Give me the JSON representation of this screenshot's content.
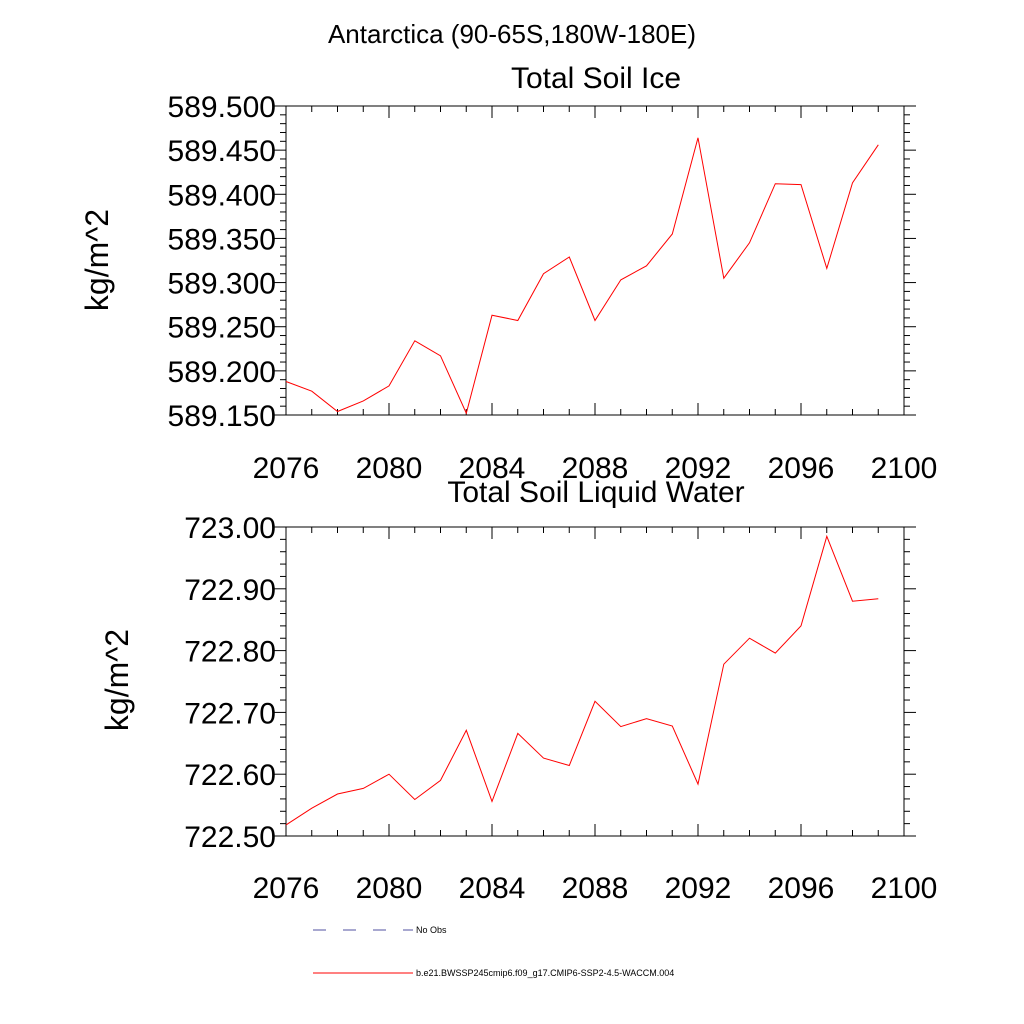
{
  "figure": {
    "title": "Antarctica (90-65S,180W-180E)",
    "series_color": "#ff0000",
    "obs_color": "#5050a0"
  },
  "legend": {
    "entries": [
      {
        "label": "No Obs",
        "style": "dashed"
      },
      {
        "label": "b.e21.BWSSP245cmip6.f09_g17.CMIP6-SSP2-4.5-WACCM.004",
        "style": "solid"
      }
    ]
  },
  "chart_data": [
    {
      "type": "line",
      "title": "Total Soil Ice",
      "xlabel": "",
      "ylabel": "kg/m^2",
      "xlim": [
        2076,
        2100
      ],
      "ylim": [
        589.15,
        589.5
      ],
      "xticks": [
        "2076",
        "2080",
        "2084",
        "2088",
        "2092",
        "2096",
        "2100"
      ],
      "yticks": [
        "589.150",
        "589.200",
        "589.250",
        "589.300",
        "589.350",
        "589.400",
        "589.450",
        "589.500"
      ],
      "grid": false,
      "x": [
        2076,
        2077,
        2078,
        2079,
        2080,
        2081,
        2082,
        2083,
        2084,
        2085,
        2086,
        2087,
        2088,
        2089,
        2090,
        2091,
        2092,
        2093,
        2094,
        2095,
        2096,
        2097,
        2098,
        2099
      ],
      "series": [
        {
          "name": "b.e21.BWSSP245cmip6.f09_g17.CMIP6-SSP2-4.5-WACCM.004",
          "values": [
            589.188,
            589.177,
            589.154,
            589.166,
            589.183,
            589.234,
            589.217,
            589.152,
            589.263,
            589.257,
            589.31,
            589.329,
            589.257,
            589.303,
            589.319,
            589.355,
            589.464,
            589.305,
            589.345,
            589.412,
            589.411,
            589.316,
            589.413,
            589.456
          ]
        }
      ]
    },
    {
      "type": "line",
      "title": "Total Soil Liquid Water",
      "xlabel": "",
      "ylabel": "kg/m^2",
      "xlim": [
        2076,
        2100
      ],
      "ylim": [
        722.5,
        723.0
      ],
      "xticks": [
        "2076",
        "2080",
        "2084",
        "2088",
        "2092",
        "2096",
        "2100"
      ],
      "yticks": [
        "722.50",
        "722.60",
        "722.70",
        "722.80",
        "722.90",
        "723.00"
      ],
      "grid": false,
      "x": [
        2076,
        2077,
        2078,
        2079,
        2080,
        2081,
        2082,
        2083,
        2084,
        2085,
        2086,
        2087,
        2088,
        2089,
        2090,
        2091,
        2092,
        2093,
        2094,
        2095,
        2096,
        2097,
        2098,
        2099
      ],
      "series": [
        {
          "name": "b.e21.BWSSP245cmip6.f09_g17.CMIP6-SSP2-4.5-WACCM.004",
          "values": [
            722.518,
            722.545,
            722.568,
            722.577,
            722.6,
            722.559,
            722.59,
            722.671,
            722.556,
            722.666,
            722.626,
            722.614,
            722.718,
            722.677,
            722.69,
            722.678,
            722.584,
            722.778,
            722.82,
            722.796,
            722.84,
            722.985,
            722.88,
            722.884
          ]
        }
      ]
    }
  ]
}
